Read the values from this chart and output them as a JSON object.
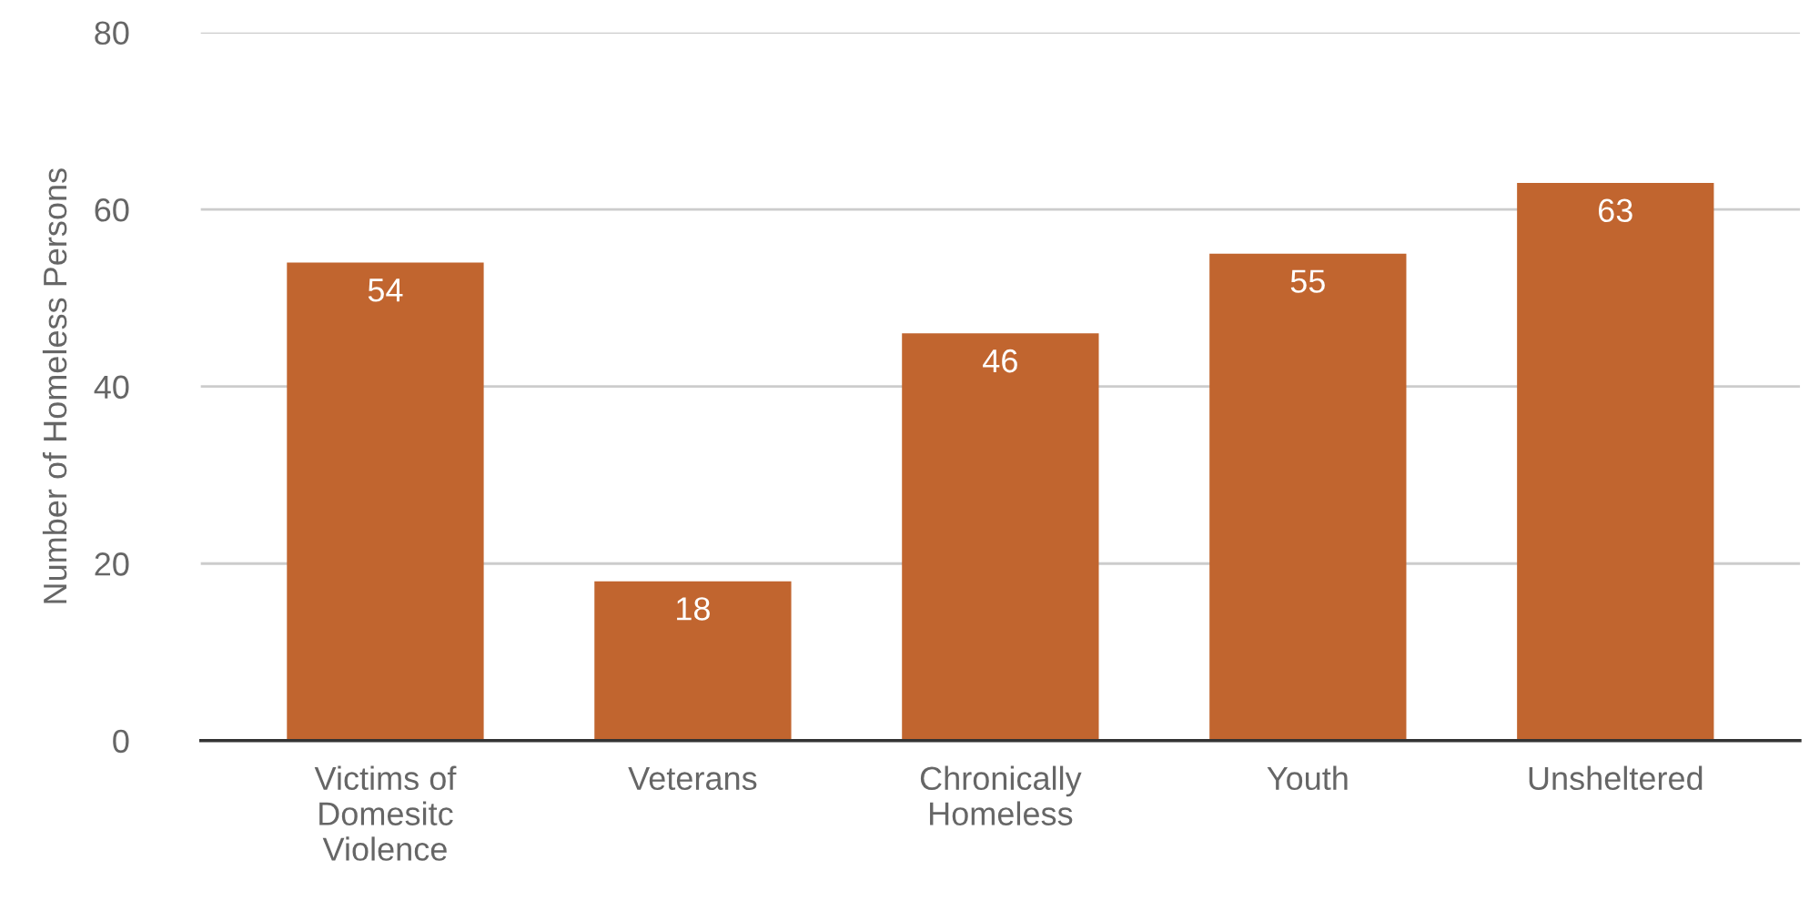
{
  "chart_data": {
    "type": "bar",
    "ylabel": "Number of Homeless Persons",
    "categories": [
      "Victims of\nDomesitc\nViolence",
      "Veterans",
      "Chronically\nHomeless",
      "Youth",
      "Unsheltered"
    ],
    "values": [
      54,
      18,
      46,
      55,
      63
    ],
    "color": "#c1652f",
    "ylim": [
      0,
      80
    ],
    "yticks": [
      0,
      20,
      40,
      60,
      80
    ],
    "grid": "y",
    "data_labels": true,
    "legend": false
  }
}
